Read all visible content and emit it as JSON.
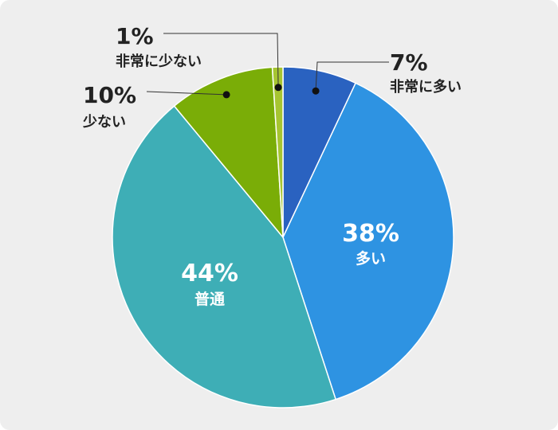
{
  "chart_data": {
    "type": "pie",
    "categories": [
      "非常に多い",
      "多い",
      "普通",
      "少ない",
      "非常に少ない"
    ],
    "values": [
      7,
      38,
      44,
      10,
      1
    ],
    "value_labels": [
      "7%",
      "38%",
      "44%",
      "10%",
      "1%"
    ],
    "colors": [
      "#2a62c0",
      "#2e93e2",
      "#3eaeb6",
      "#7aad07",
      "#a6c531"
    ],
    "start_angle": "12 o'clock",
    "direction": "clockwise",
    "label_style": {
      "outside_color": "#222222",
      "inside_color": "#ffffff",
      "leader_color": "#333333"
    }
  }
}
